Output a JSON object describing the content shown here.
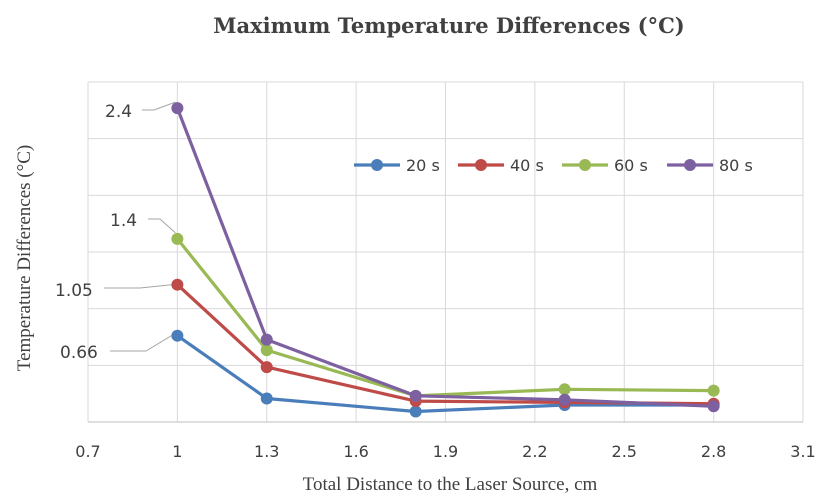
{
  "chart_data": {
    "type": "line",
    "title": "Maximum Temperature Differences (°C)",
    "xlabel": "Total Distance to the Laser Source, cm",
    "ylabel": "Temperature Differences (°C)",
    "xlim": [
      0.7,
      3.1
    ],
    "xticks": [
      "0.7",
      "1",
      "1.3",
      "1.6",
      "1.9",
      "2.2",
      "2.5",
      "2.8",
      "3.1"
    ],
    "ylim": [
      0,
      2.6
    ],
    "grid": true,
    "legend_position": "top-right",
    "x": [
      1,
      1.3,
      1.8,
      2.3,
      2.8
    ],
    "series": [
      {
        "name": "20 s",
        "color": "#4a7ebb",
        "values": [
          0.66,
          0.18,
          0.08,
          0.13,
          0.13
        ]
      },
      {
        "name": "40 s",
        "color": "#be4b48",
        "values": [
          1.05,
          0.42,
          0.16,
          0.15,
          0.14
        ]
      },
      {
        "name": "60 s",
        "color": "#98b954",
        "values": [
          1.4,
          0.55,
          0.2,
          0.25,
          0.24
        ]
      },
      {
        "name": "80 s",
        "color": "#7d60a0",
        "values": [
          2.4,
          0.63,
          0.2,
          0.17,
          0.12
        ]
      }
    ],
    "data_labels": [
      {
        "text": "2.4",
        "series": "80 s",
        "x": 1
      },
      {
        "text": "1.4",
        "series": "60 s",
        "x": 1
      },
      {
        "text": "1.05",
        "series": "40 s",
        "x": 1
      },
      {
        "text": "0.66",
        "series": "20 s",
        "x": 1
      }
    ]
  }
}
